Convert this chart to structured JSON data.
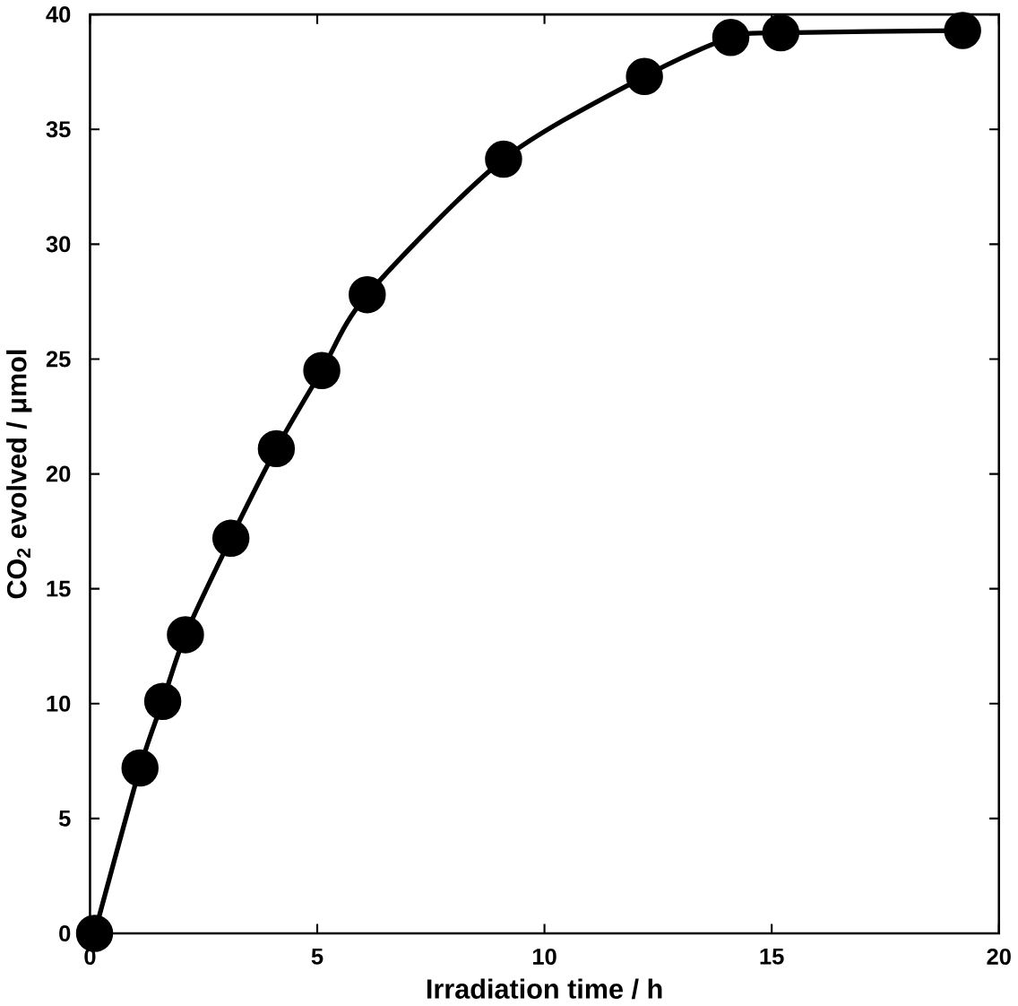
{
  "chart_data": {
    "type": "line",
    "xlabel": "Irradiation time / h",
    "ylabel": "CO$_{2}$ evolved / μmol",
    "x": [
      0.1,
      1.1,
      1.6,
      2.1,
      3.1,
      4.1,
      5.1,
      6.1,
      9.1,
      12.2,
      14.1,
      15.2,
      19.2
    ],
    "series": [
      {
        "color": "#000000",
        "values": [
          0,
          7.2,
          10.1,
          13.0,
          17.2,
          21.1,
          24.5,
          27.8,
          33.7,
          37.3,
          39.0,
          39.2,
          39.3
        ]
      }
    ],
    "xlim": [
      0,
      20
    ],
    "ylim": [
      0,
      40
    ],
    "xticks": [
      0,
      5,
      10,
      15,
      20
    ],
    "yticks": [
      0,
      5,
      10,
      15,
      20,
      25,
      30,
      35,
      40
    ],
    "marker": "circle",
    "line_style": "solid"
  }
}
